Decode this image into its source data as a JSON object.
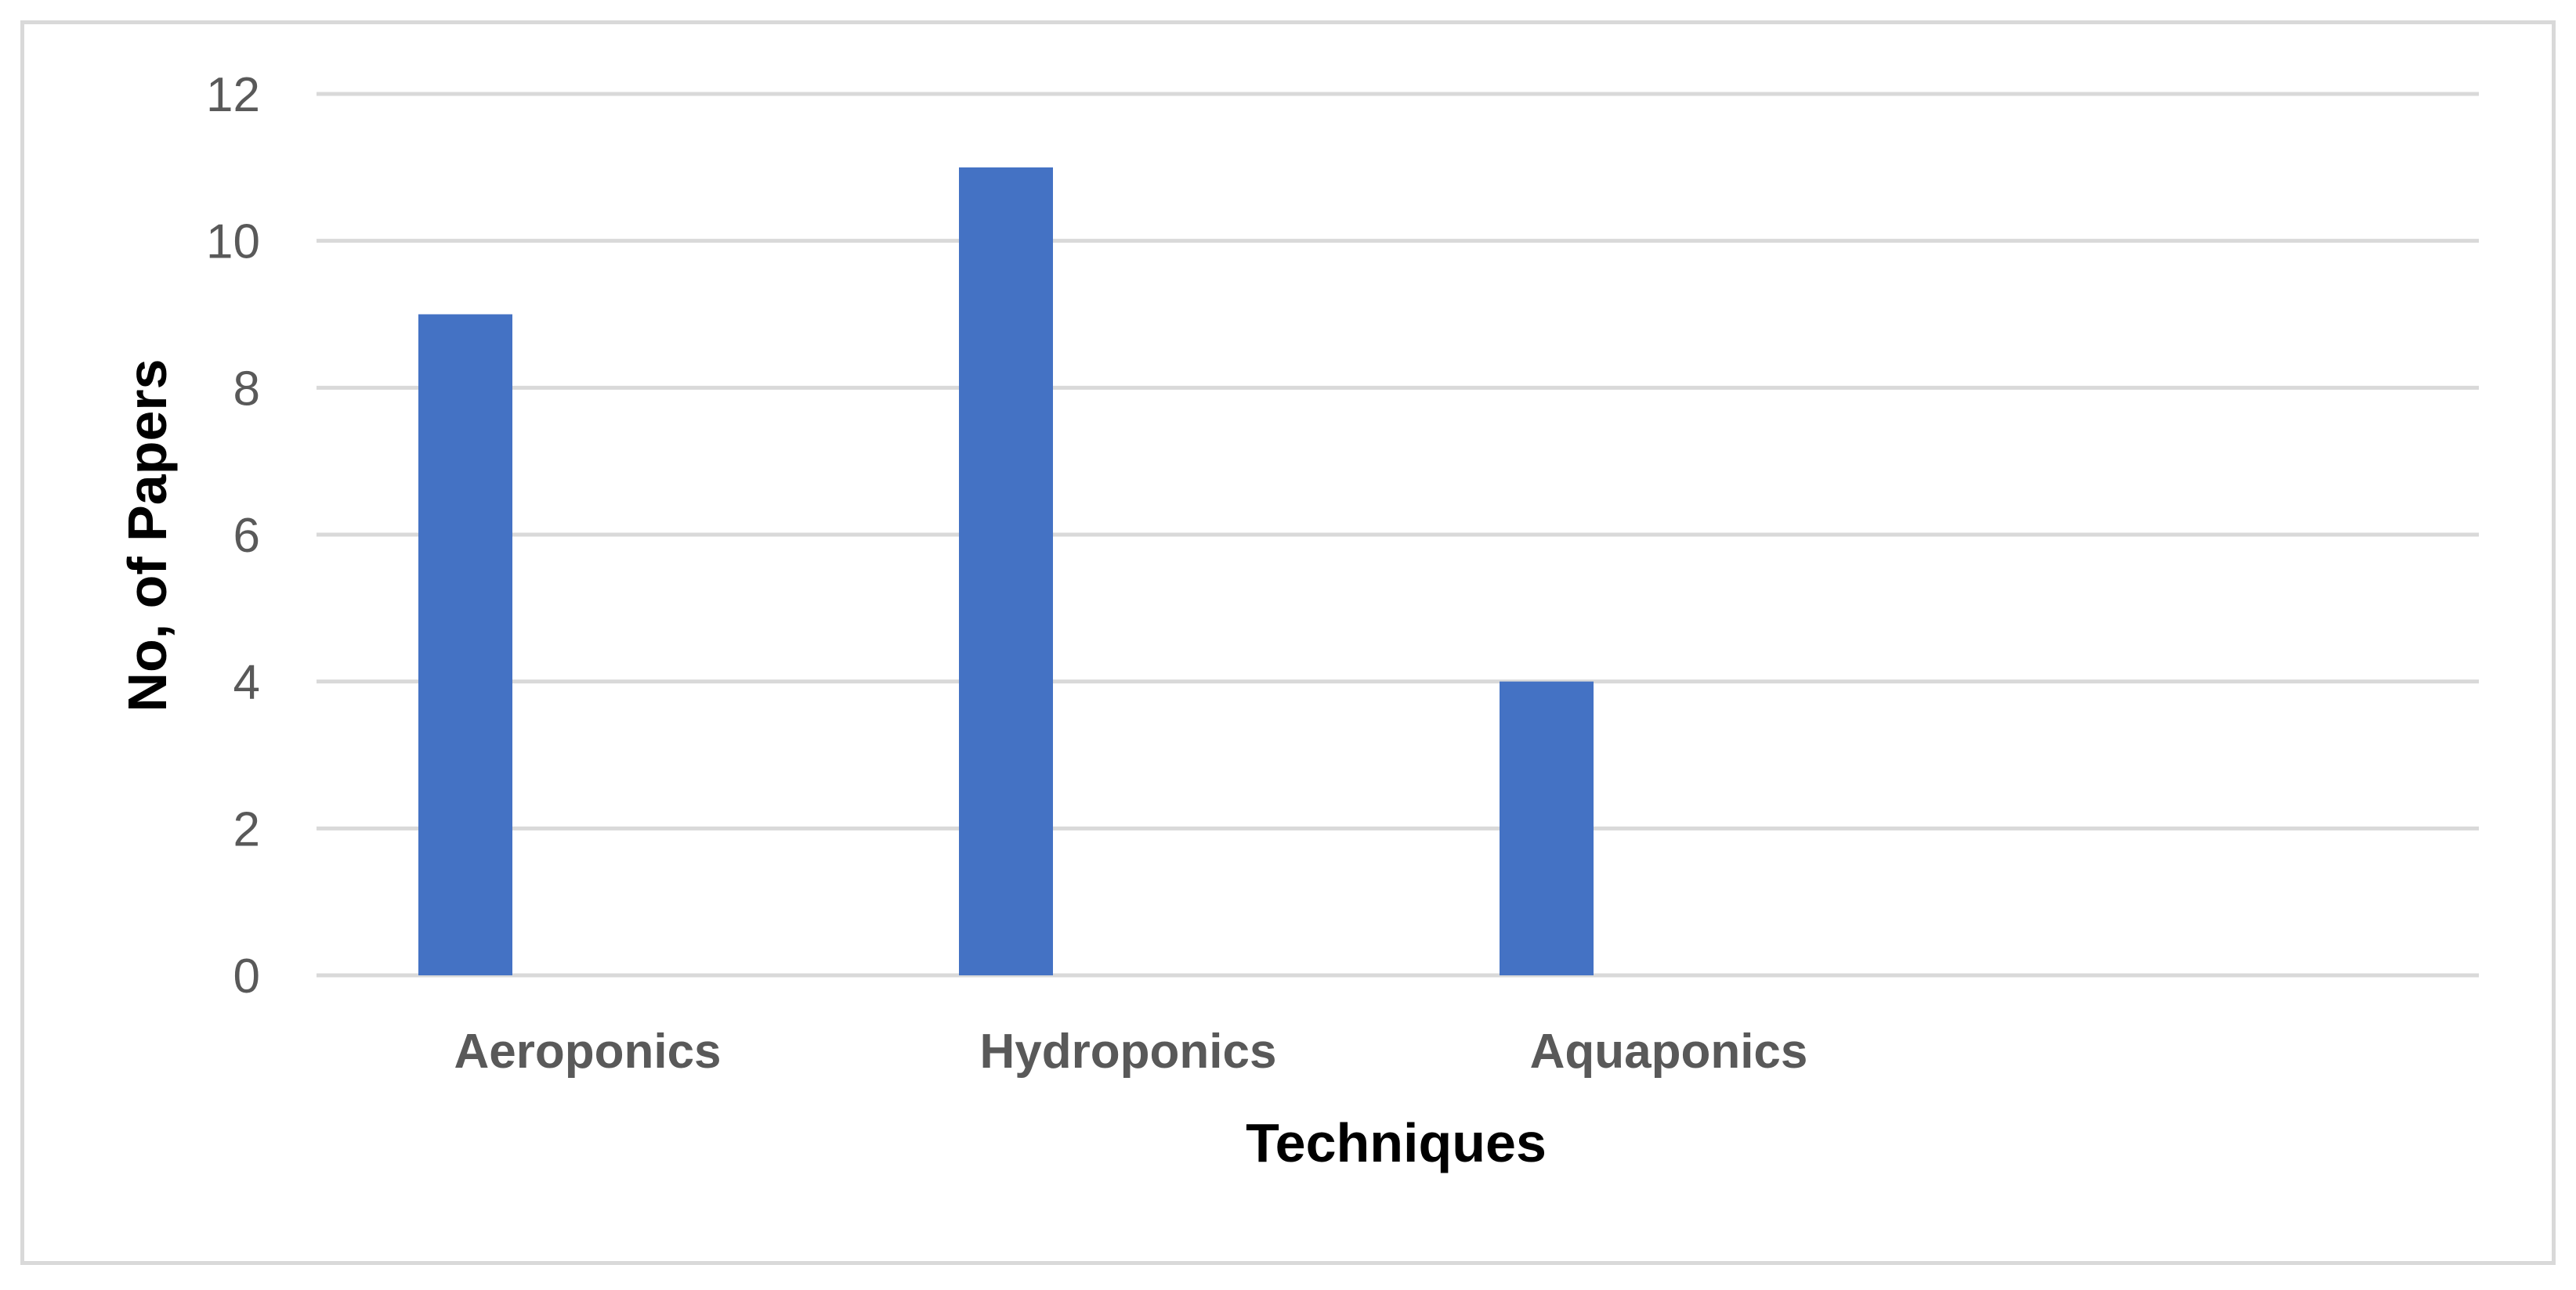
{
  "chart_data": {
    "type": "bar",
    "title": "",
    "xlabel": "Techniques",
    "ylabel": "No, of Papers",
    "categories": [
      "Aeroponics",
      "Hydroponics",
      "Aquaponics"
    ],
    "values": [
      9,
      11,
      4
    ],
    "ylim": [
      0,
      12
    ],
    "yticks": [
      0,
      2,
      4,
      6,
      8,
      10,
      12
    ],
    "bar_color": "#4472c4",
    "grid": true,
    "gridline_color": "#d9d9d9",
    "legend": "none"
  }
}
